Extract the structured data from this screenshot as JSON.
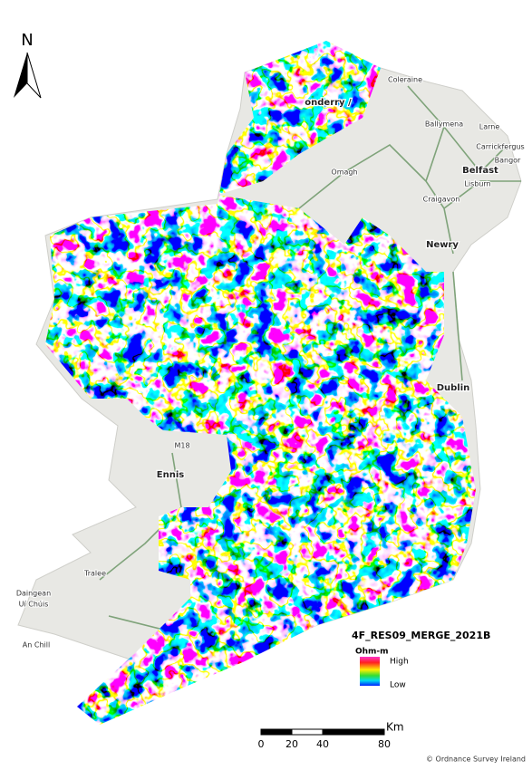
{
  "north_arrow": "N",
  "places": [
    "Coleraine",
    "onderry /",
    "Ballymena",
    "Larne",
    "Carrickfergus",
    "Bangor",
    "Belfast",
    "Lisburn",
    "Omagh",
    "Craigavon",
    "Newry",
    "Dublin",
    "Ennis",
    "M18",
    "Tralee",
    "Daingean",
    "Uí Chúis",
    "An Chill"
  ],
  "legend": {
    "title": "4F_RES09_MERGE_2021B",
    "unit": "Ohm-m",
    "high": "High",
    "low": "Low"
  },
  "scale_bar": {
    "unit": "Km",
    "ticks": [
      0,
      20,
      40,
      80
    ]
  },
  "credit": "© Ordnance Survey Ireland"
}
